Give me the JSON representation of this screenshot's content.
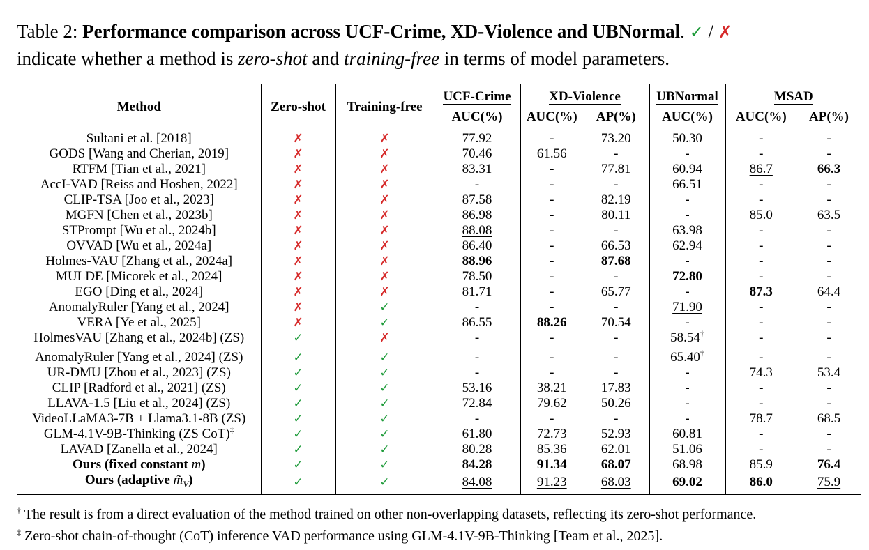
{
  "caption": {
    "label": "Table 2:",
    "title": "Performance comparison across UCF-Crime, XD-Violence and UBNormal",
    "after_title": ".",
    "check_symbol": "✓",
    "slash": "/",
    "cross_symbol": "✗",
    "text_a": "indicate whether a method is",
    "zero_shot": "zero-shot",
    "and": "and",
    "training_free": "training-free",
    "text_b": "in terms of model parameters."
  },
  "header": {
    "method": "Method",
    "zero_shot": "Zero-shot",
    "training_free": "Training-free",
    "groups": [
      "UCF-Crime",
      "XD-Violence",
      "UBNormal",
      "MSAD"
    ],
    "metrics": [
      "AUC(%)",
      "AUC(%)",
      "AP(%)",
      "AUC(%)",
      "AUC(%)",
      "AP(%)"
    ]
  },
  "colors": {
    "check": "#1e9b3a",
    "cross": "#d62a2a"
  },
  "section1": [
    {
      "method": "Sultani et al. [2018]",
      "zs": "✗",
      "tf": "✗",
      "ucf": "77.92",
      "xd_auc": "-",
      "xd_ap": "73.20",
      "ubn": "50.30",
      "msad_auc": "-",
      "msad_ap": "-"
    },
    {
      "method": "GODS [Wang and Cherian, 2019]",
      "zs": "✗",
      "tf": "✗",
      "ucf": "70.46",
      "xd_auc": "61.56",
      "xd_ap": "-",
      "ubn": "-",
      "msad_auc": "-",
      "msad_ap": "-"
    },
    {
      "method": "RTFM [Tian et al., 2021]",
      "zs": "✗",
      "tf": "✗",
      "ucf": "83.31",
      "xd_auc": "-",
      "xd_ap": "77.81",
      "ubn": "60.94",
      "msad_auc": "86.7",
      "msad_ap": "66.3"
    },
    {
      "method": "AccI-VAD [Reiss and Hoshen, 2022]",
      "zs": "✗",
      "tf": "✗",
      "ucf": "-",
      "xd_auc": "-",
      "xd_ap": "-",
      "ubn": "66.51",
      "msad_auc": "-",
      "msad_ap": "-"
    },
    {
      "method": "CLIP-TSA [Joo et al., 2023]",
      "zs": "✗",
      "tf": "✗",
      "ucf": "87.58",
      "xd_auc": "-",
      "xd_ap": "82.19",
      "ubn": "-",
      "msad_auc": "-",
      "msad_ap": "-"
    },
    {
      "method": "MGFN [Chen et al., 2023b]",
      "zs": "✗",
      "tf": "✗",
      "ucf": "86.98",
      "xd_auc": "-",
      "xd_ap": "80.11",
      "ubn": "-",
      "msad_auc": "85.0",
      "msad_ap": "63.5"
    },
    {
      "method": "STPrompt [Wu et al., 2024b]",
      "zs": "✗",
      "tf": "✗",
      "ucf": "88.08",
      "xd_auc": "-",
      "xd_ap": "-",
      "ubn": "63.98",
      "msad_auc": "-",
      "msad_ap": "-"
    },
    {
      "method": "OVVAD [Wu et al., 2024a]",
      "zs": "✗",
      "tf": "✗",
      "ucf": "86.40",
      "xd_auc": "-",
      "xd_ap": "66.53",
      "ubn": "62.94",
      "msad_auc": "-",
      "msad_ap": "-"
    },
    {
      "method": "Holmes-VAU [Zhang et al., 2024a]",
      "zs": "✗",
      "tf": "✗",
      "ucf": "88.96",
      "xd_auc": "-",
      "xd_ap": "87.68",
      "ubn": "-",
      "msad_auc": "-",
      "msad_ap": "-"
    },
    {
      "method": "MULDE [Micorek et al., 2024]",
      "zs": "✗",
      "tf": "✗",
      "ucf": "78.50",
      "xd_auc": "-",
      "xd_ap": "-",
      "ubn": "72.80",
      "msad_auc": "-",
      "msad_ap": "-"
    },
    {
      "method": "EGO [Ding et al., 2024]",
      "zs": "✗",
      "tf": "✗",
      "ucf": "81.71",
      "xd_auc": "-",
      "xd_ap": "65.77",
      "ubn": "-",
      "msad_auc": "87.3",
      "msad_ap": "64.4"
    },
    {
      "method": "AnomalyRuler [Yang et al., 2024]",
      "zs": "✗",
      "tf": "✓",
      "ucf": "-",
      "xd_auc": "-",
      "xd_ap": "-",
      "ubn": "71.90",
      "msad_auc": "-",
      "msad_ap": "-"
    },
    {
      "method": "VERA [Ye et al., 2025]",
      "zs": "✗",
      "tf": "✓",
      "ucf": "86.55",
      "xd_auc": "88.26",
      "xd_ap": "70.54",
      "ubn": "-",
      "msad_auc": "-",
      "msad_ap": "-"
    },
    {
      "method": "HolmesVAU [Zhang et al., 2024b] (ZS)",
      "zs": "✓",
      "tf": "✗",
      "ucf": "-",
      "xd_auc": "-",
      "xd_ap": "-",
      "ubn": "58.54",
      "ubn_sup": "†",
      "msad_auc": "-",
      "msad_ap": "-"
    }
  ],
  "section2": [
    {
      "method": "AnomalyRuler [Yang et al., 2024] (ZS)",
      "zs": "✓",
      "tf": "✓",
      "ucf": "-",
      "xd_auc": "-",
      "xd_ap": "-",
      "ubn": "65.40",
      "ubn_sup": "†",
      "msad_auc": "-",
      "msad_ap": "-"
    },
    {
      "method": "UR-DMU [Zhou et al., 2023] (ZS)",
      "zs": "✓",
      "tf": "✓",
      "ucf": "-",
      "xd_auc": "-",
      "xd_ap": "-",
      "ubn": "-",
      "msad_auc": "74.3",
      "msad_ap": "53.4"
    },
    {
      "method": "CLIP [Radford et al., 2021] (ZS)",
      "zs": "✓",
      "tf": "✓",
      "ucf": "53.16",
      "xd_auc": "38.21",
      "xd_ap": "17.83",
      "ubn": "-",
      "msad_auc": "-",
      "msad_ap": "-"
    },
    {
      "method": "LLAVA-1.5 [Liu et al., 2024] (ZS)",
      "zs": "✓",
      "tf": "✓",
      "ucf": "72.84",
      "xd_auc": "79.62",
      "xd_ap": "50.26",
      "ubn": "-",
      "msad_auc": "-",
      "msad_ap": "-"
    },
    {
      "method": "VideoLLaMA3-7B + Llama3.1-8B (ZS)",
      "zs": "✓",
      "tf": "✓",
      "ucf": "-",
      "xd_auc": "-",
      "xd_ap": "-",
      "ubn": "-",
      "msad_auc": "78.7",
      "msad_ap": "68.5"
    },
    {
      "method": "GLM-4.1V-9B-Thinking (ZS CoT)",
      "method_sup": "‡",
      "zs": "✓",
      "tf": "✓",
      "ucf": "61.80",
      "xd_auc": "72.73",
      "xd_ap": "52.93",
      "ubn": "60.81",
      "msad_auc": "-",
      "msad_ap": "-"
    },
    {
      "method": "LAVAD [Zanella et al., 2024]",
      "zs": "✓",
      "tf": "✓",
      "ucf": "80.28",
      "xd_auc": "85.36",
      "xd_ap": "62.01",
      "ubn": "51.06",
      "msad_auc": "-",
      "msad_ap": "-"
    },
    {
      "method_a": "Ours (fixed constant ",
      "method_var": "m",
      "method_b": ")",
      "zs": "✓",
      "tf": "✓",
      "ucf": "84.28",
      "xd_auc": "91.34",
      "xd_ap": "68.07",
      "ubn": "68.98",
      "msad_auc": "85.9",
      "msad_ap": "76.4"
    },
    {
      "method_a": "Ours (adaptive ",
      "method_var": "m̃",
      "method_sub": "V",
      "method_b": ")",
      "zs": "✓",
      "tf": "✓",
      "ucf": "84.08",
      "xd_auc": "91.23",
      "xd_ap": "68.03",
      "ubn": "69.02",
      "msad_auc": "86.0",
      "msad_ap": "75.9"
    }
  ],
  "footnotes": {
    "f1_mark": "†",
    "f1_text": "The result is from a direct evaluation of the method trained on other non-overlapping datasets, reflecting its zero-shot performance.",
    "f2_mark": "‡",
    "f2_text": "Zero-shot chain-of-thought (CoT) inference VAD performance using GLM-4.1V-9B-Thinking [Team et al., 2025]."
  }
}
